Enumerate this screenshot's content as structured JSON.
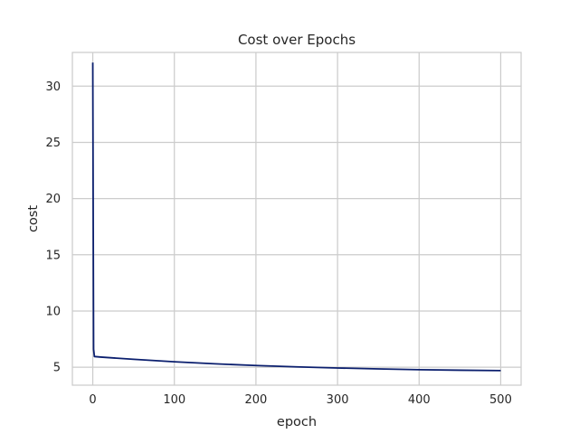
{
  "chart_data": {
    "type": "line",
    "title": "Cost over Epochs",
    "xlabel": "epoch",
    "ylabel": "cost",
    "xlim": [
      -25,
      525
    ],
    "ylim": [
      3.4,
      33.0
    ],
    "x_ticks": [
      0,
      100,
      200,
      300,
      400,
      500
    ],
    "y_ticks": [
      5,
      10,
      15,
      20,
      25,
      30
    ],
    "grid": true,
    "legend": "none",
    "series": [
      {
        "color": "#0b1f6e",
        "x": [
          0,
          1,
          2,
          10,
          50,
          100,
          150,
          200,
          250,
          300,
          350,
          400,
          450,
          500
        ],
        "y": [
          32.1,
          6.6,
          5.95,
          5.9,
          5.7,
          5.48,
          5.3,
          5.15,
          5.03,
          4.93,
          4.85,
          4.78,
          4.73,
          4.7
        ]
      }
    ]
  }
}
